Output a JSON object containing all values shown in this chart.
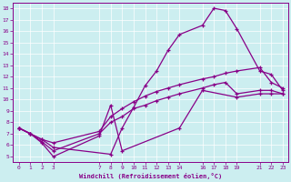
{
  "xlabel": "Windchill (Refroidissement éolien,°C)",
  "bg_color": "#cceef0",
  "line_color": "#880088",
  "grid_color": "#ffffff",
  "xlim": [
    -0.5,
    23.5
  ],
  "ylim": [
    4.5,
    18.5
  ],
  "xticks": [
    0,
    1,
    2,
    3,
    7,
    8,
    9,
    10,
    11,
    12,
    13,
    14,
    16,
    17,
    18,
    19,
    21,
    22,
    23
  ],
  "yticks": [
    5,
    6,
    7,
    8,
    9,
    10,
    11,
    12,
    13,
    14,
    15,
    16,
    17,
    18
  ],
  "curve1_x": [
    0,
    1,
    2,
    3,
    8,
    9,
    10,
    11,
    12,
    13,
    14,
    16,
    17,
    18,
    19,
    21,
    22,
    23
  ],
  "curve1_y": [
    7.5,
    7.0,
    6.5,
    5.8,
    5.2,
    7.5,
    9.3,
    11.2,
    12.5,
    14.3,
    15.7,
    16.5,
    18.0,
    17.8,
    16.2,
    12.5,
    12.2,
    10.8
  ],
  "curve2_x": [
    0,
    1,
    2,
    3,
    7,
    8,
    9,
    10,
    11,
    12,
    13,
    14,
    16,
    17,
    18,
    19,
    21,
    22,
    23
  ],
  "curve2_y": [
    7.5,
    7.0,
    6.5,
    6.2,
    7.2,
    8.5,
    9.2,
    9.8,
    10.3,
    10.7,
    11.0,
    11.3,
    11.8,
    12.0,
    12.3,
    12.5,
    12.8,
    11.5,
    11.0
  ],
  "curve3_x": [
    0,
    1,
    2,
    3,
    7,
    8,
    9,
    10,
    11,
    12,
    13,
    14,
    16,
    17,
    18,
    19,
    21,
    22,
    23
  ],
  "curve3_y": [
    7.5,
    7.0,
    6.3,
    5.5,
    7.0,
    8.0,
    8.5,
    9.2,
    9.5,
    9.9,
    10.2,
    10.5,
    11.0,
    11.3,
    11.5,
    10.5,
    10.8,
    10.8,
    10.5
  ],
  "curve4_x": [
    0,
    1,
    2,
    3,
    7,
    8,
    9,
    14,
    16,
    19,
    21,
    22,
    23
  ],
  "curve4_y": [
    7.5,
    7.0,
    6.2,
    5.0,
    6.8,
    9.5,
    5.5,
    7.5,
    10.8,
    10.2,
    10.5,
    10.5,
    10.5
  ]
}
